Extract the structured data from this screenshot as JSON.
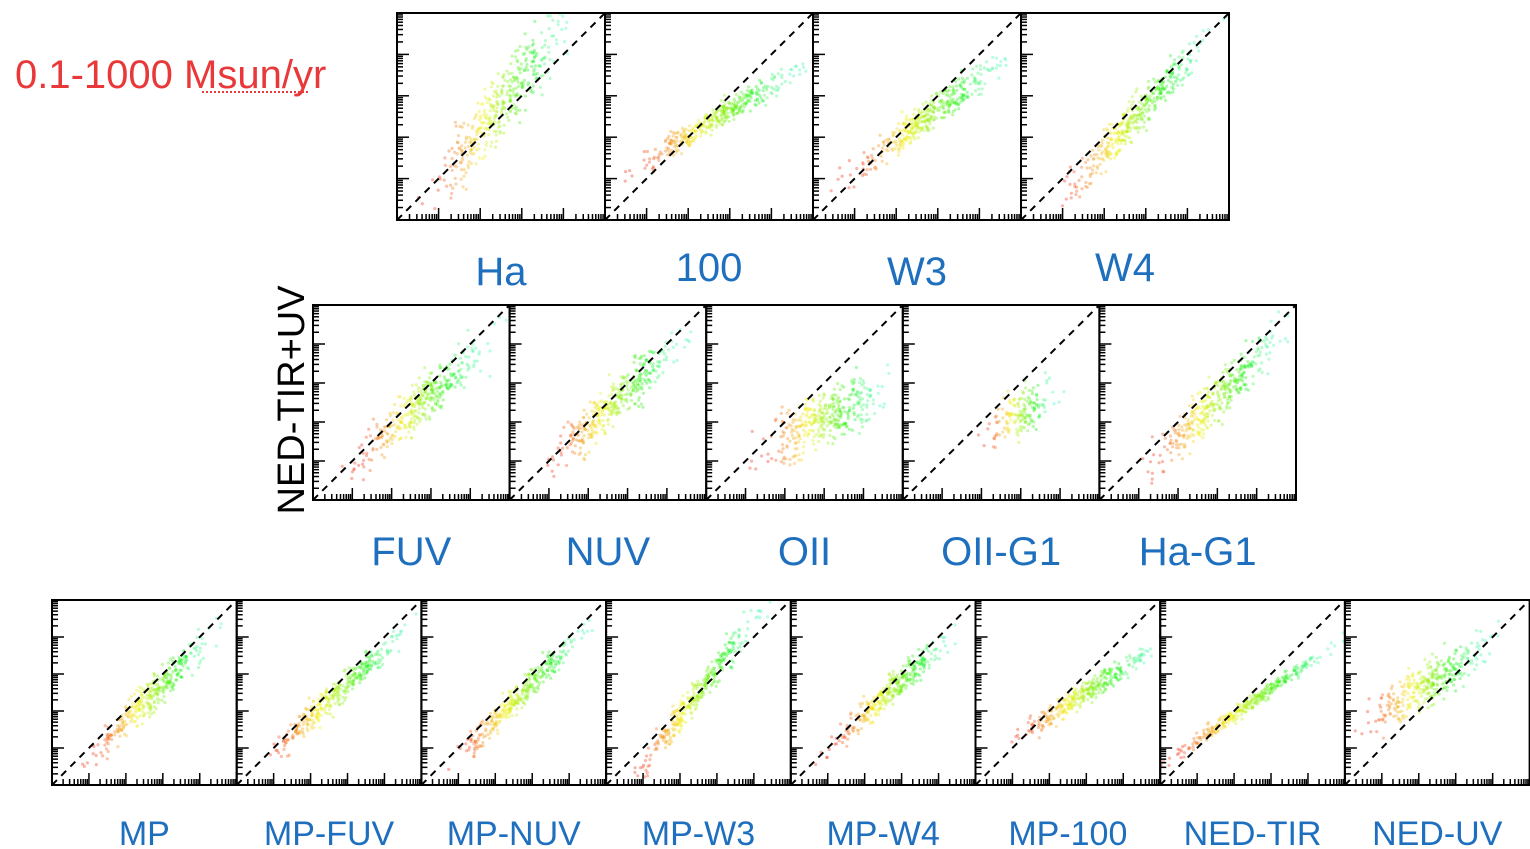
{
  "title": "0.1-1000 Msun/yr",
  "y_label": "NED-TIR+UV",
  "rows": [
    {
      "panels": [
        {
          "label": "Ha"
        },
        {
          "label": "100"
        },
        {
          "label": "W3"
        },
        {
          "label": "W4"
        }
      ]
    },
    {
      "panels": [
        {
          "label": "FUV"
        },
        {
          "label": "NUV"
        },
        {
          "label": "OII"
        },
        {
          "label": "OII-G1"
        },
        {
          "label": "Ha-G1"
        }
      ]
    },
    {
      "panels": [
        {
          "label": "MP"
        },
        {
          "label": "MP-FUV"
        },
        {
          "label": "MP-NUV"
        },
        {
          "label": "MP-W3"
        },
        {
          "label": "MP-W4"
        },
        {
          "label": "MP-100"
        },
        {
          "label": "NED-TIR"
        },
        {
          "label": "NED-UV"
        }
      ]
    }
  ]
}
